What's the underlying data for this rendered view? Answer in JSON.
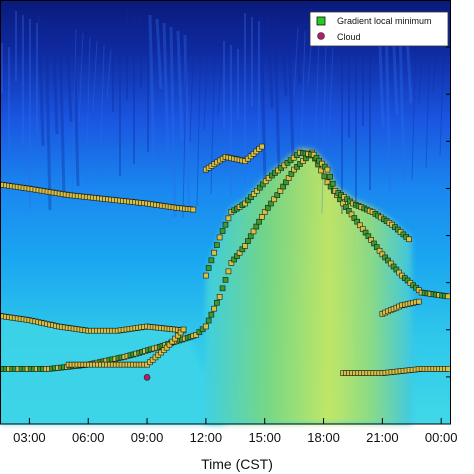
{
  "chart_data": {
    "type": "heatmap",
    "title": "",
    "xlabel": "Time (CST)",
    "ylabel": "",
    "xlim": [
      1.5,
      24.5
    ],
    "x_ticks": [
      "03:00",
      "06:00",
      "09:00",
      "12:00",
      "15:00",
      "18:00",
      "21:00",
      "00:00"
    ],
    "x_tick_hours": [
      3,
      6,
      9,
      12,
      15,
      18,
      21,
      24
    ],
    "y_tick_count": 9,
    "legend": {
      "position": "top-right",
      "entries": [
        {
          "label": "Gradient local minimum",
          "marker": "square",
          "color": "#22cc22"
        },
        {
          "label": "Cloud",
          "marker": "circle",
          "color": "#b0206a"
        }
      ]
    },
    "colors": {
      "top": "#0a1a7a",
      "upper": "#1a55e0",
      "mid": "#1aa0f0",
      "lower": "#40d8e8",
      "plume": "#8ae070",
      "plume_core": "#c8e860"
    },
    "series": [
      {
        "name": "Gradient local minimum",
        "layers": [
          {
            "points": [
              [
                1.5,
                0.745
              ],
              [
                3,
                0.755
              ],
              [
                4.5,
                0.77
              ],
              [
                6,
                0.78
              ],
              [
                7.5,
                0.78
              ],
              [
                9,
                0.77
              ],
              [
                10,
                0.775
              ],
              [
                11,
                0.78
              ]
            ]
          },
          {
            "points": [
              [
                1.5,
                0.87
              ],
              [
                4,
                0.87
              ],
              [
                6,
                0.86
              ],
              [
                8,
                0.84
              ],
              [
                9.5,
                0.82
              ],
              [
                10.5,
                0.805
              ],
              [
                11.5,
                0.79
              ],
              [
                12,
                0.77
              ],
              [
                12.7,
                0.7
              ],
              [
                13.3,
                0.62
              ],
              [
                14,
                0.58
              ],
              [
                15,
                0.5
              ],
              [
                15.8,
                0.45
              ],
              [
                16.5,
                0.4
              ],
              [
                17.4,
                0.36
              ],
              [
                18.2,
                0.43
              ],
              [
                19,
                0.48
              ],
              [
                20,
                0.54
              ],
              [
                21,
                0.6
              ],
              [
                22,
                0.65
              ],
              [
                23,
                0.69
              ],
              [
                24.5,
                0.7
              ]
            ]
          },
          {
            "points": [
              [
                1.5,
                0.435
              ],
              [
                3,
                0.445
              ],
              [
                5,
                0.46
              ],
              [
                7,
                0.47
              ],
              [
                9,
                0.48
              ],
              [
                10.5,
                0.49
              ],
              [
                11.5,
                0.495
              ]
            ]
          },
          {
            "points": [
              [
                5,
                0.86
              ],
              [
                6.5,
                0.86
              ],
              [
                8,
                0.86
              ],
              [
                9,
                0.86
              ],
              [
                10,
                0.82
              ],
              [
                11,
                0.77
              ]
            ]
          },
          {
            "points": [
              [
                12,
                0.65
              ],
              [
                12.7,
                0.56
              ],
              [
                13.3,
                0.5
              ],
              [
                14,
                0.48
              ],
              [
                14.6,
                0.45
              ],
              [
                15.2,
                0.42
              ],
              [
                16,
                0.39
              ],
              [
                16.8,
                0.36
              ],
              [
                17.5,
                0.365
              ],
              [
                18.2,
                0.4
              ],
              [
                18.6,
                0.45
              ],
              [
                19.5,
                0.48
              ],
              [
                20.5,
                0.5
              ],
              [
                21.5,
                0.53
              ],
              [
                22.5,
                0.57
              ]
            ]
          },
          {
            "points": [
              [
                12,
                0.4
              ],
              [
                13,
                0.37
              ],
              [
                14,
                0.38
              ],
              [
                15,
                0.34
              ]
            ]
          },
          {
            "points": [
              [
                21,
                0.74
              ],
              [
                22,
                0.72
              ],
              [
                23,
                0.71
              ]
            ]
          },
          {
            "points": [
              [
                19,
                0.88
              ],
              [
                21,
                0.88
              ],
              [
                23,
                0.87
              ],
              [
                24.5,
                0.87
              ]
            ]
          }
        ]
      },
      {
        "name": "Cloud",
        "points": [
          [
            9,
            0.89
          ]
        ]
      }
    ]
  }
}
